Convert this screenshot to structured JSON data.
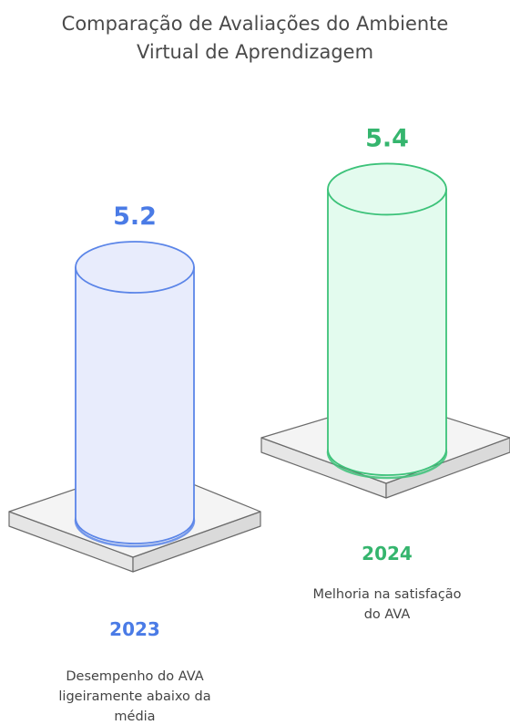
{
  "title_lines": [
    "Comparação de Avaliações do Ambiente",
    "Virtual de Aprendizagem"
  ],
  "chart_data": {
    "type": "bar",
    "title": "Comparação de Avaliações do Ambiente Virtual de Aprendizagem",
    "categories": [
      "2023",
      "2024"
    ],
    "values": [
      5.2,
      5.4
    ],
    "value_labels": [
      "5.2",
      "5.4"
    ],
    "descriptions": [
      [
        "Desempenho do AVA",
        "ligeiramente abaixo da",
        "média"
      ],
      [
        "Melhoria na satisfação",
        "do AVA"
      ]
    ],
    "colors": {
      "2023": {
        "fill": "#e8ecfc",
        "stroke": "#5b85e8",
        "text": "#4a7be6"
      },
      "2024": {
        "fill": "#e3fbee",
        "stroke": "#3cc279",
        "text": "#35b56e"
      }
    },
    "xlabel": "",
    "ylabel": ""
  }
}
